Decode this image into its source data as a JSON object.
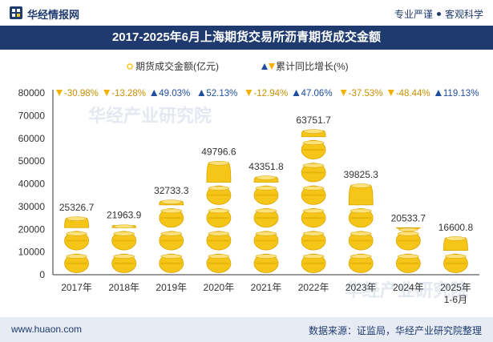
{
  "header": {
    "brand": "华经情报网",
    "slogan_left": "专业严谨",
    "slogan_right": "客观科学"
  },
  "footer": {
    "website": "www.huaon.com",
    "source": "数据来源：证监局，华经产业研究院整理"
  },
  "watermark": "华经产业研究院",
  "colors": {
    "bar": "#f5c518",
    "bar_dark": "#d9a400",
    "up": "#1f4e9a",
    "down": "#f2b200",
    "title_bg": "#1f3a6e"
  },
  "chart_data": {
    "type": "bar",
    "title": "2017-2025年6月上海期货交易所沥青期货成交金额",
    "categories": [
      "2017年",
      "2018年",
      "2019年",
      "2020年",
      "2021年",
      "2022年",
      "2023年",
      "2024年",
      "2025年\n1-6月"
    ],
    "series": [
      {
        "name": "期货成交金额(亿元)",
        "values": [
          25326.7,
          21963.9,
          32733.3,
          49796.6,
          43351.8,
          63751.7,
          39825.3,
          20533.7,
          16600.8
        ],
        "labels": [
          "25326.7",
          "21963.9",
          "32733.3",
          "49796.6",
          "43351.8",
          "63751.7",
          "39825.3",
          "20533.7",
          "16600.8"
        ]
      },
      {
        "name": "累计同比增长(%)",
        "values": [
          -30.98,
          -13.28,
          49.03,
          52.13,
          -12.94,
          47.06,
          -37.53,
          -48.44,
          119.13
        ],
        "labels": [
          "-30.98%",
          "-13.28%",
          "49.03%",
          "52.13%",
          "-12.94%",
          "47.06%",
          "-37.53%",
          "-48.44%",
          "119.13%"
        ]
      }
    ],
    "yticks": [
      "0",
      "10000",
      "20000",
      "30000",
      "40000",
      "50000",
      "60000",
      "70000",
      "80000"
    ],
    "ylim": [
      0,
      80000
    ],
    "legend_position": "top-center",
    "grid": false
  }
}
